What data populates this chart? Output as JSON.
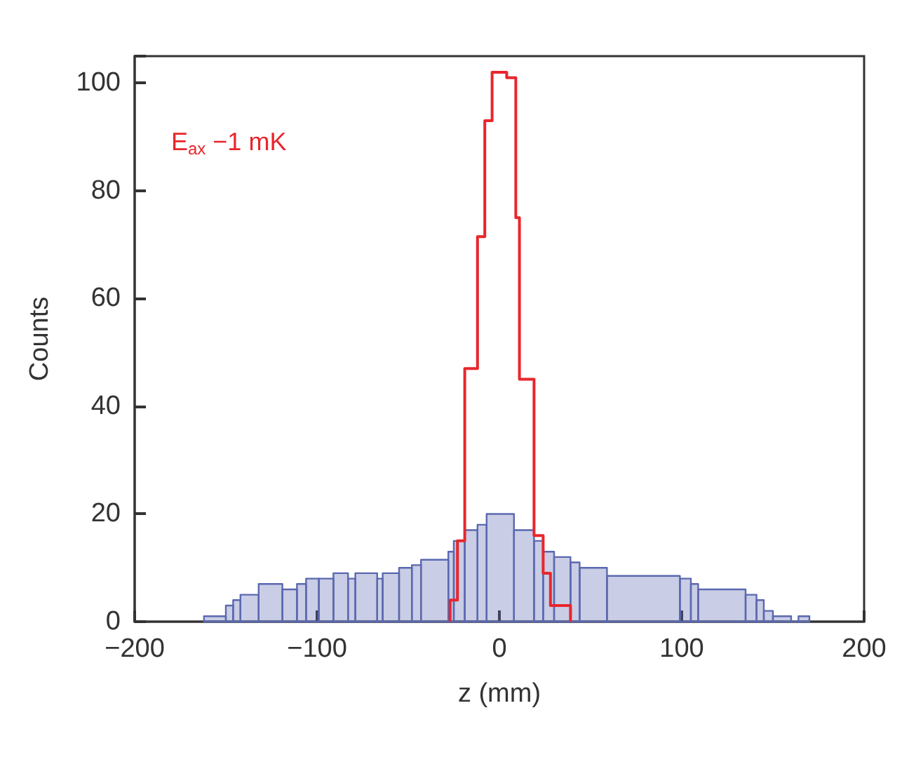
{
  "chart_data": {
    "type": "histogram",
    "xlabel": "z (mm)",
    "ylabel": "Counts",
    "xlim": [
      -200,
      200
    ],
    "xticks": [
      {
        "value": -200,
        "label": "−200"
      },
      {
        "value": -100,
        "label": "−100"
      },
      0,
      100,
      200
    ],
    "ylim": [
      0,
      105
    ],
    "yticks": [
      0,
      20,
      40,
      60,
      80,
      100
    ],
    "bins": [
      -162,
      -150,
      -146,
      -142,
      -132,
      -119,
      -111,
      -106,
      -99,
      -91,
      -83,
      -79,
      -67,
      -64,
      -55,
      -48,
      -43,
      -28,
      -25,
      -19,
      -12,
      -7,
      8,
      19,
      24,
      30,
      39,
      44,
      59,
      99,
      105,
      109,
      135,
      141,
      145,
      150,
      160,
      164,
      170
    ],
    "series": [
      {
        "color": "#5b68b0",
        "values": [
          1,
          3,
          4,
          5,
          7,
          6,
          7,
          8,
          8,
          9,
          8,
          9,
          8,
          9,
          10,
          10.5,
          11.5,
          13,
          15,
          17,
          18,
          20,
          17,
          15,
          13,
          12,
          11,
          10,
          8.5,
          8,
          7,
          6,
          5,
          4,
          2,
          1,
          0,
          1
        ]
      },
      {
        "type": "step",
        "name": "E$_{ax}$ −1 mK",
        "color": "#e8262c",
        "x": [
          -27,
          -27,
          -23,
          -19,
          -12,
          -8,
          -4,
          4,
          9,
          11,
          19,
          24,
          28,
          39
        ],
        "values": [
          0,
          4,
          15,
          47,
          71.5,
          93,
          102,
          101,
          75,
          45,
          16,
          9,
          3,
          0
        ]
      }
    ]
  }
}
